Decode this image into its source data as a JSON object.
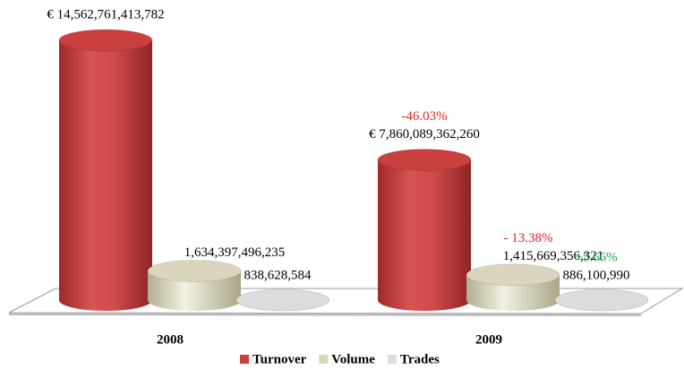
{
  "chart_data": {
    "type": "bar3d-cylinder",
    "categories": [
      "2008",
      "2009"
    ],
    "series": [
      {
        "name": "Turnover",
        "color": "#c9403f",
        "values": [
          14562761413782,
          7860089362260
        ],
        "value_labels": [
          "€ 14,562,761,413,782",
          "€ 7,860,089,362,260"
        ],
        "changes": [
          null,
          "-46.03%"
        ],
        "change_color": "#e8231f"
      },
      {
        "name": "Volume",
        "color": "#d9d6bd",
        "values": [
          1634397496235,
          1415669356321
        ],
        "value_labels": [
          "1,634,397,496,235",
          "1,415,669,356,321"
        ],
        "changes": [
          null,
          "- 13.38%"
        ],
        "change_color": "#e8231f"
      },
      {
        "name": "Trades",
        "color": "#dcdcdc",
        "values": [
          838628584,
          886100990
        ],
        "value_labels": [
          "838,628,584",
          "886,100,990"
        ],
        "changes": [
          null,
          "+5.66%"
        ],
        "change_color": "#22a64a"
      }
    ],
    "legend": "bottom"
  }
}
